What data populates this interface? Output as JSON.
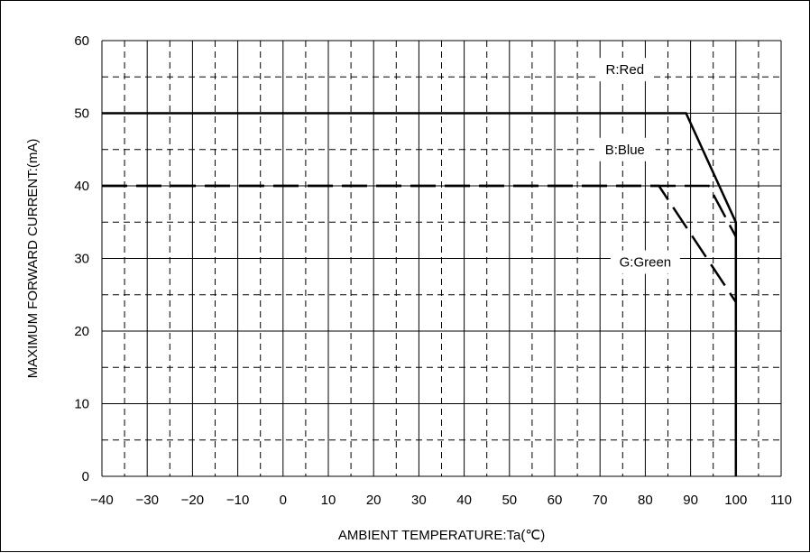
{
  "chart_data": {
    "type": "line",
    "title": "",
    "xlabel": "AMBIENT TEMPERATURE:Ta(℃)",
    "ylabel": "MAXIMUM FORWARD CURRENT:(mA)",
    "xlim": [
      -40,
      110
    ],
    "ylim": [
      0,
      60
    ],
    "x_ticks": [
      -40,
      -30,
      -20,
      -10,
      0,
      10,
      20,
      30,
      40,
      50,
      60,
      70,
      80,
      90,
      100,
      110
    ],
    "y_ticks": [
      0,
      10,
      20,
      30,
      40,
      50,
      60
    ],
    "grid": {
      "major": true,
      "minor_dashed": true,
      "x_minor_step": 5,
      "y_minor_step": 5
    },
    "legend": "inline labels",
    "series": [
      {
        "name": "R:Red",
        "style": "solid",
        "color": "#000000",
        "points": [
          [
            -40,
            50
          ],
          [
            89,
            50
          ],
          [
            100,
            35
          ],
          [
            100,
            0
          ]
        ]
      },
      {
        "name": "B:Blue",
        "style": "dashed",
        "color": "#000000",
        "points": [
          [
            -40,
            40
          ],
          [
            94,
            40
          ],
          [
            100,
            33
          ]
        ]
      },
      {
        "name": "G:Green",
        "style": "dashed",
        "color": "#000000",
        "points": [
          [
            -40,
            40
          ],
          [
            83,
            40
          ],
          [
            100,
            24
          ]
        ]
      }
    ]
  }
}
